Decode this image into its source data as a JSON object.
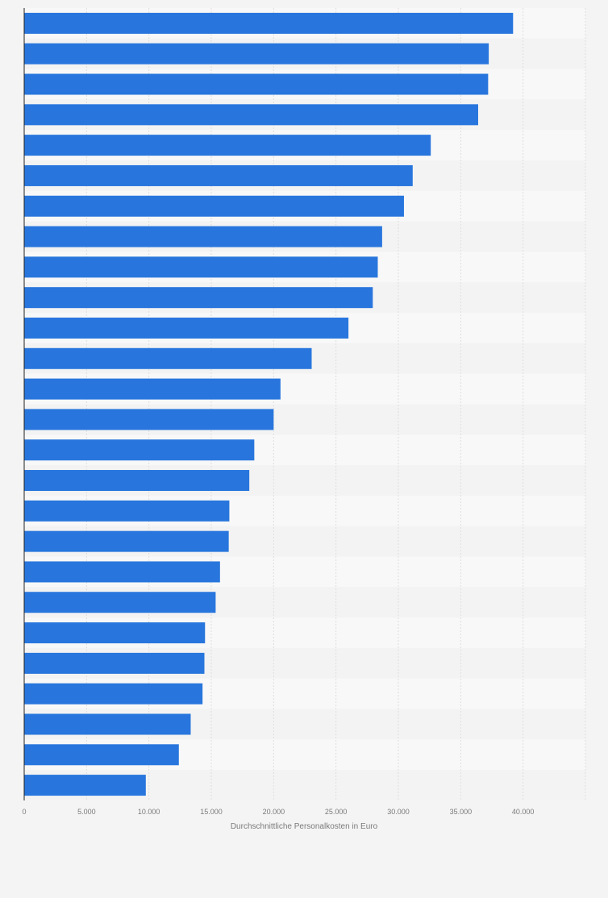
{
  "chart_data": {
    "type": "bar",
    "orientation": "horizontal",
    "xlabel": "Durchschnittliche Personalkosten in Euro",
    "xlim": [
      0,
      45000
    ],
    "ticks": [
      {
        "value": 0,
        "label": "0"
      },
      {
        "value": 5000,
        "label": "5.000"
      },
      {
        "value": 10000,
        "label": "10.000"
      },
      {
        "value": 15000,
        "label": "15.000"
      },
      {
        "value": 20000,
        "label": "20.000"
      },
      {
        "value": 25000,
        "label": "25.000"
      },
      {
        "value": 30000,
        "label": "30.000"
      },
      {
        "value": 35000,
        "label": "35.000"
      },
      {
        "value": 40000,
        "label": "40.000"
      }
    ],
    "values": [
      39200,
      37250,
      37200,
      36400,
      32600,
      31150,
      30450,
      28700,
      28350,
      27950,
      26000,
      23050,
      20550,
      20000,
      18450,
      18050,
      16450,
      16400,
      15700,
      15350,
      14500,
      14450,
      14300,
      13350,
      12400,
      9750
    ],
    "grid": true,
    "legend": "none",
    "bar_color": "#2876dd",
    "band_colors": [
      "#f8f8f8",
      "#f3f3f3"
    ],
    "gridline_color": "#dedede",
    "axis_color": "#222222",
    "tick_label_color": "#7a7a7a"
  }
}
